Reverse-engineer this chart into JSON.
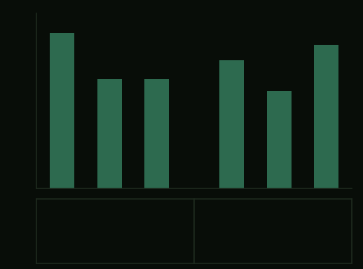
{
  "group1_values": [
    40,
    28,
    28
  ],
  "group2_values": [
    33,
    25,
    37
  ],
  "bar_color": "#2d6a4f",
  "background_color": "#080d08",
  "axis_line_color": "#1e2b1e",
  "ylim": [
    0,
    45
  ],
  "bar_width": 0.52,
  "figsize": [
    5.18,
    3.84
  ],
  "dpi": 100
}
